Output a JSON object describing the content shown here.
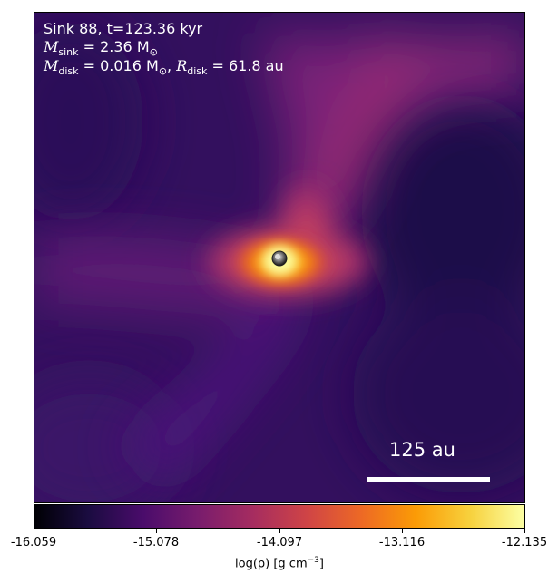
{
  "annotation": {
    "line1": "Sink 88, t=123.36 kyr",
    "msink_symbol": "M",
    "msink_sub": "sink",
    "msink_value": " = 2.36 M",
    "msink_sun": "⊙",
    "mdisk_symbol": "M",
    "mdisk_sub": "disk",
    "mdisk_value": " = 0.016 M",
    "mdisk_sun": "⊙",
    "rdisk_prefix": ", ",
    "rdisk_symbol": "R",
    "rdisk_sub": "disk",
    "rdisk_value": " = 61.8 au"
  },
  "scale_bar": {
    "label": "125 au"
  },
  "colorbar": {
    "colormap": "inferno",
    "vmin": -16.059,
    "vmax": -12.135,
    "ticks": [
      "-16.059",
      "-15.078",
      "-14.097",
      "-13.116",
      "-12.135"
    ],
    "label_prefix": "log(ρ) [g cm",
    "label_sup": "−3",
    "label_suffix": "]"
  }
}
